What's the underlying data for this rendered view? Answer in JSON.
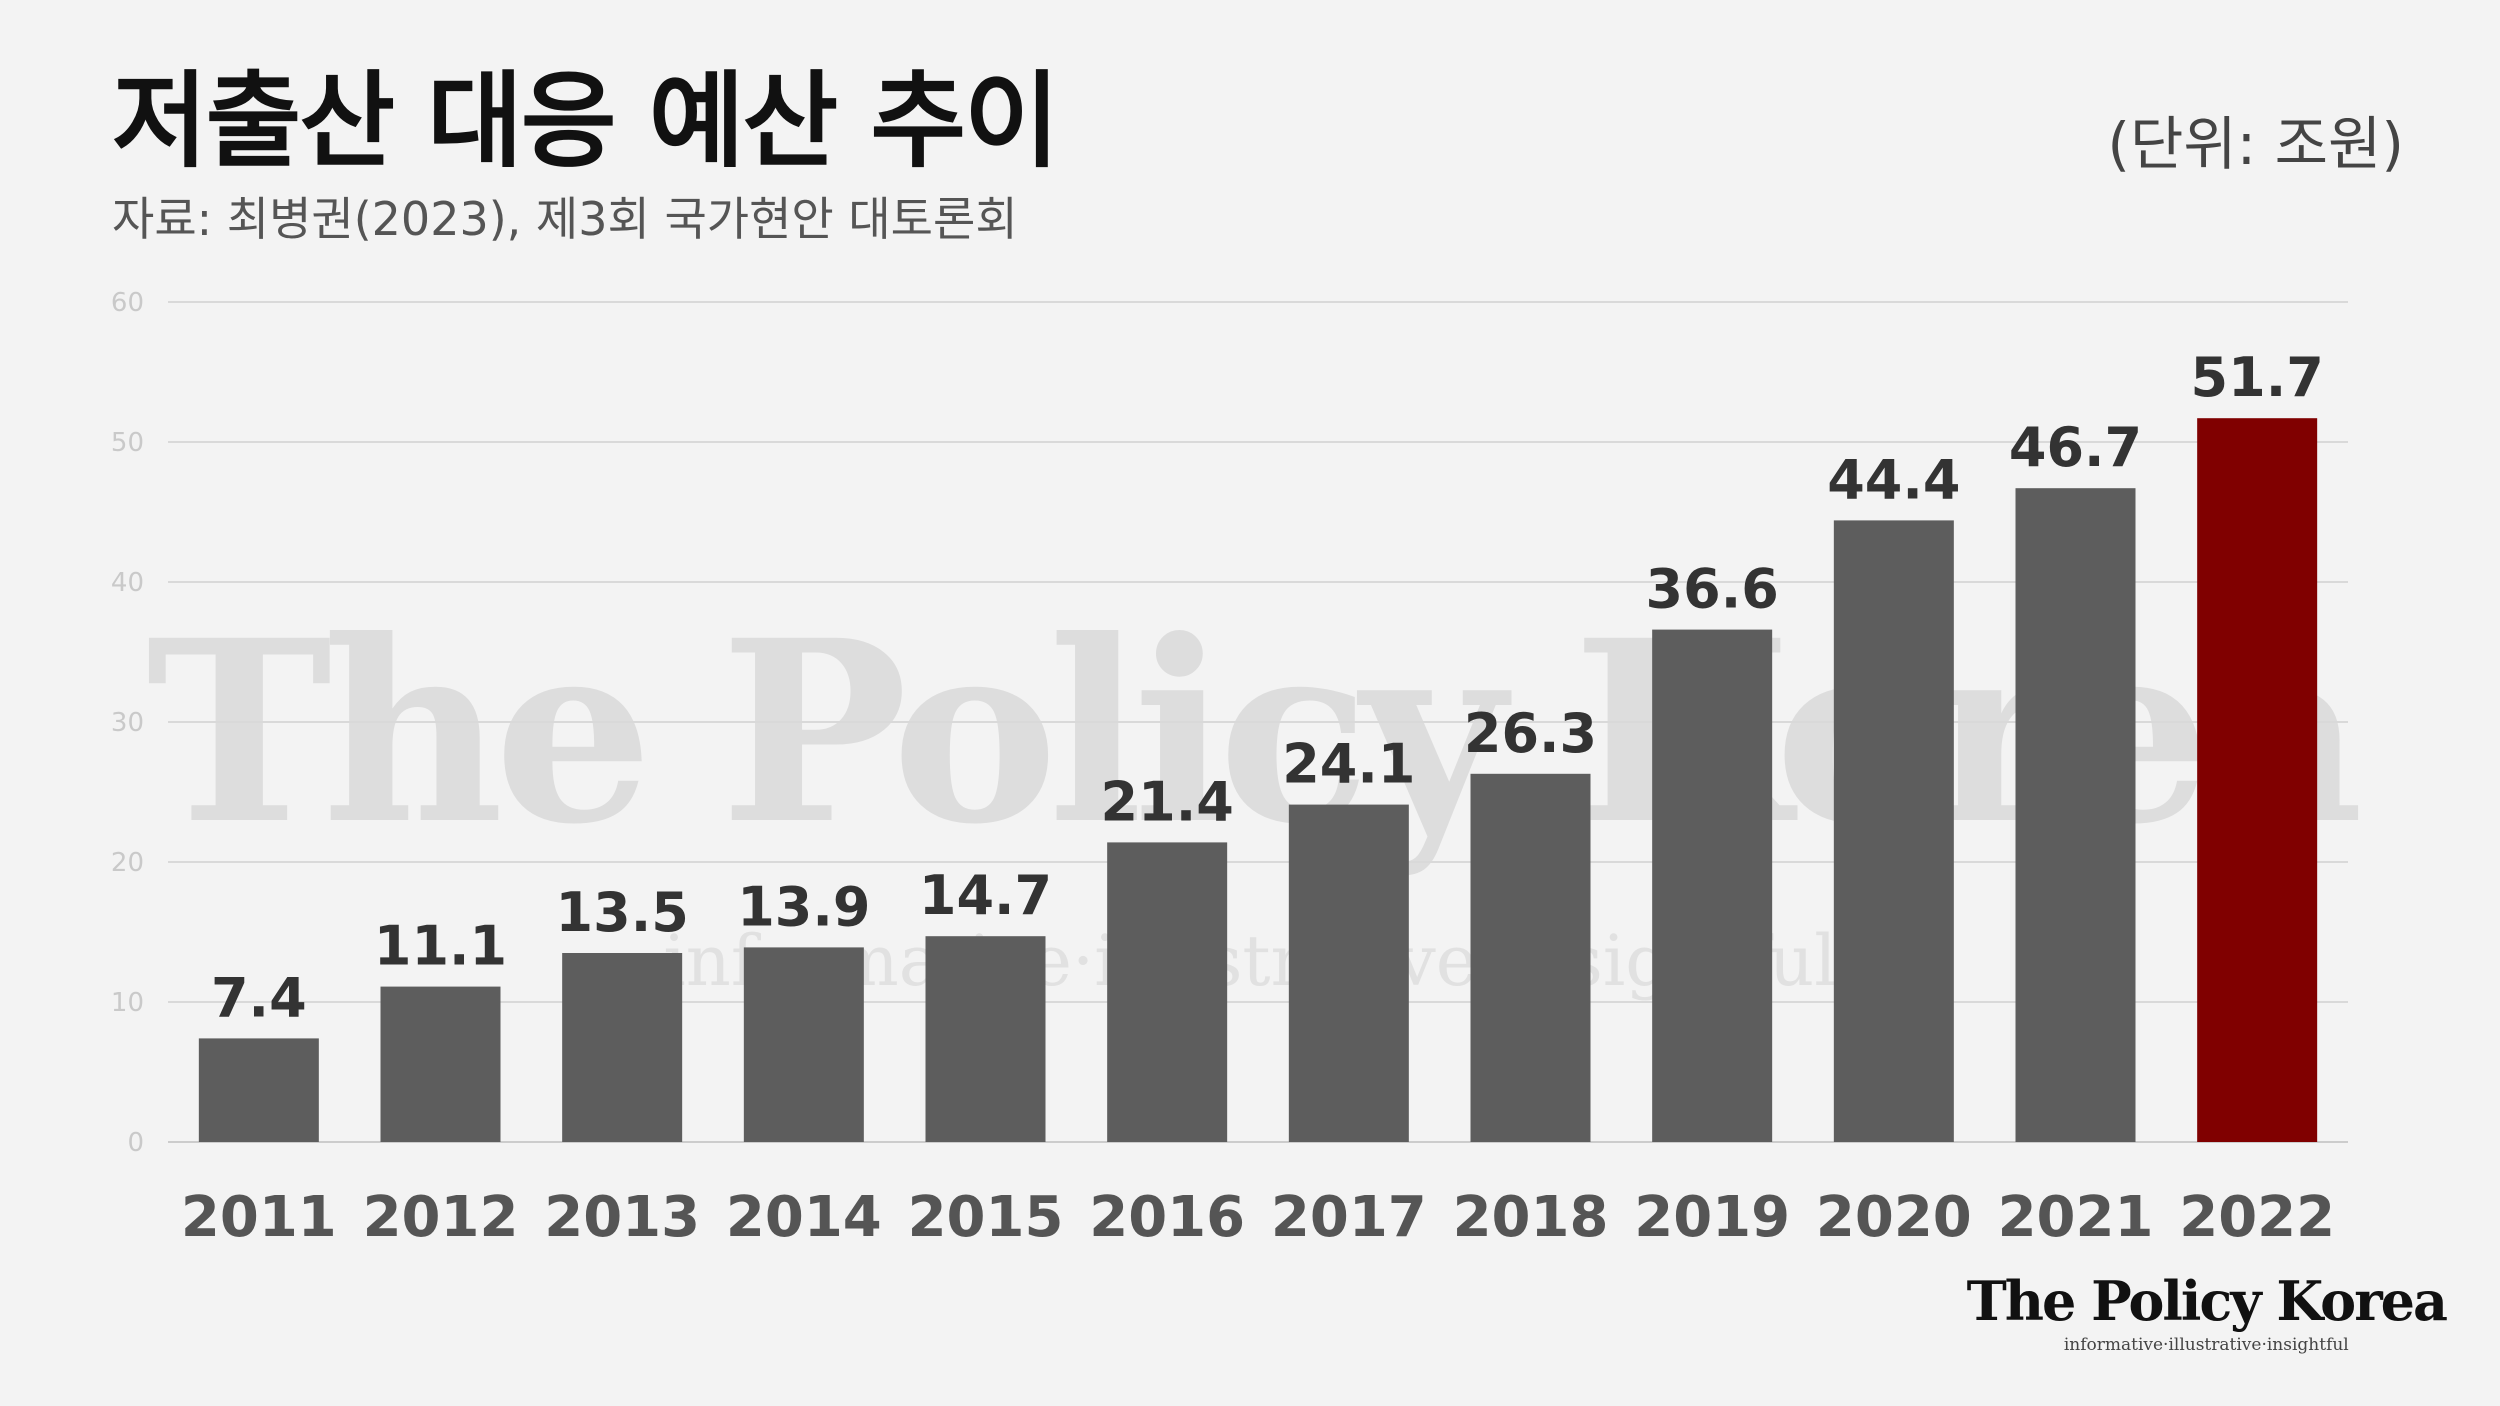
{
  "header": {
    "title": "저출산 대응 예산 추이",
    "subtitle": "자료: 최병권(2023), 제3회 국가현안 대토론회",
    "unit": "(단위: 조원)"
  },
  "watermark": {
    "main": "The Policy Korea",
    "tagline": "informative·illustrative·insightful"
  },
  "brand": {
    "name": "The Policy Korea",
    "tagline": "informative·illustrative·insightful"
  },
  "colors": {
    "bar": "#5d5d5d",
    "highlight": "#800000",
    "gridline": "#d9d9d9",
    "background": "#f3f3f3"
  },
  "chart_data": {
    "type": "bar",
    "categories": [
      "2011",
      "2012",
      "2013",
      "2014",
      "2015",
      "2016",
      "2017",
      "2018",
      "2019",
      "2020",
      "2021",
      "2022"
    ],
    "values": [
      7.4,
      11.1,
      13.5,
      13.9,
      14.7,
      21.4,
      24.1,
      26.3,
      36.6,
      44.4,
      46.7,
      51.7
    ],
    "value_labels": [
      "7.4",
      "11.1",
      "13.5",
      "13.9",
      "14.7",
      "21.4",
      "24.1",
      "26.3",
      "36.6",
      "44.4",
      "46.7",
      "51.7"
    ],
    "highlight_category": "2022",
    "ylim": [
      0,
      60
    ],
    "yticks": [
      0,
      10,
      20,
      30,
      40,
      50,
      60
    ],
    "grid": true,
    "legend": "none"
  }
}
